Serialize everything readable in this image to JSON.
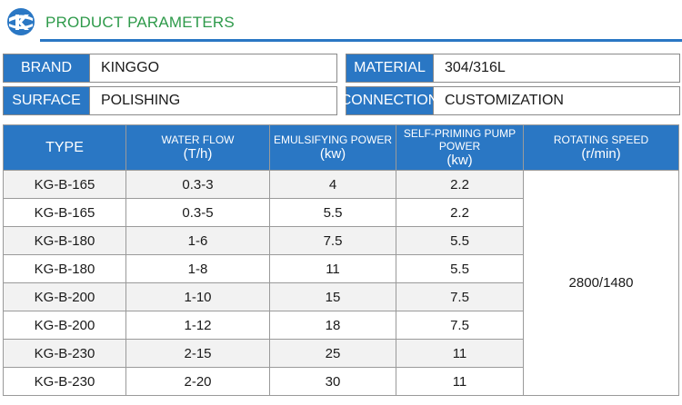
{
  "header": {
    "title": "PRODUCT PARAMETERS",
    "brand_color": "#2e9a4a",
    "accent": "#2a77c4",
    "logo_icon": "kg-swirl-logo"
  },
  "specs": {
    "brand_label": "BRAND",
    "brand_value": "KINGGO",
    "material_label": "MATERIAL",
    "material_value": "304/316L",
    "surface_label": "SURFACE",
    "surface_value": "POLISHING",
    "connection_label": "CONNECTION",
    "connection_value": "CUSTOMIZATION"
  },
  "table": {
    "headers": {
      "type": "TYPE",
      "flow_title": "WATER FLOW",
      "flow_unit": "(T/h)",
      "emul_title": "EMULSIFYING POWER",
      "emul_unit": "(kw)",
      "pump_title": "SELF-PRIMING PUMP POWER",
      "pump_unit": "(kw)",
      "speed_title": "ROTATING SPEED",
      "speed_unit": "(r/min)"
    },
    "speed": "2800/1480",
    "rows": [
      {
        "type": "KG-B-165",
        "flow": "0.3-3",
        "emul": "4",
        "pump": "2.2"
      },
      {
        "type": "KG-B-165",
        "flow": "0.3-5",
        "emul": "5.5",
        "pump": "2.2"
      },
      {
        "type": "KG-B-180",
        "flow": "1-6",
        "emul": "7.5",
        "pump": "5.5"
      },
      {
        "type": "KG-B-180",
        "flow": "1-8",
        "emul": "11",
        "pump": "5.5"
      },
      {
        "type": "KG-B-200",
        "flow": "1-10",
        "emul": "15",
        "pump": "7.5"
      },
      {
        "type": "KG-B-200",
        "flow": "1-12",
        "emul": "18",
        "pump": "7.5"
      },
      {
        "type": "KG-B-230",
        "flow": "2-15",
        "emul": "25",
        "pump": "11"
      },
      {
        "type": "KG-B-230",
        "flow": "2-20",
        "emul": "30",
        "pump": "11"
      }
    ]
  }
}
